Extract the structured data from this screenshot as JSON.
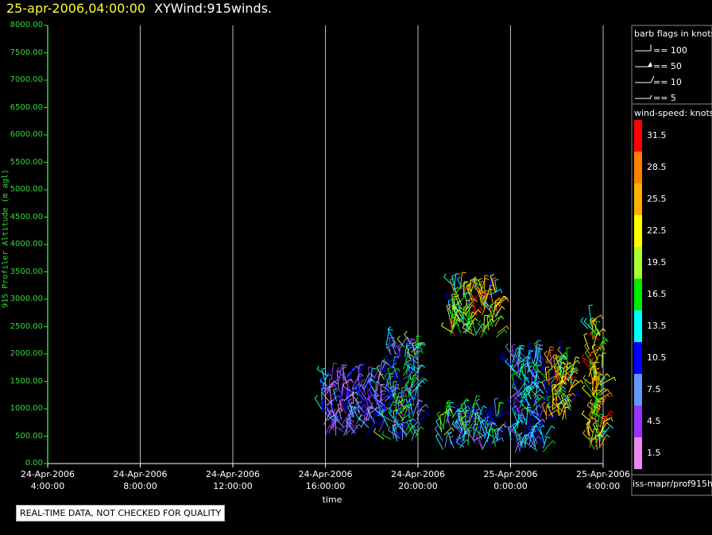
{
  "header": {
    "timestamp": "25-apr-2006,04:00:00",
    "product": "XYWind:915winds."
  },
  "barb_legend": {
    "title": "barb flags in knots",
    "items": [
      {
        "label": "== 100",
        "knots": 100
      },
      {
        "label": "== 50",
        "knots": 50
      },
      {
        "label": "== 10",
        "knots": 10
      },
      {
        "label": "== 5",
        "knots": 5
      }
    ]
  },
  "speed_legend": {
    "title": "wind-speed: knots",
    "entries": [
      {
        "label": "31.5",
        "color": "#ff0000"
      },
      {
        "label": "28.5",
        "color": "#ff8000"
      },
      {
        "label": "25.5",
        "color": "#ffb000"
      },
      {
        "label": "22.5",
        "color": "#ffff00"
      },
      {
        "label": "19.5",
        "color": "#aaff33"
      },
      {
        "label": "16.5",
        "color": "#00ee00"
      },
      {
        "label": "13.5",
        "color": "#00ffff"
      },
      {
        "label": "10.5",
        "color": "#0000ff"
      },
      {
        "label": "7.5",
        "color": "#6699ff"
      },
      {
        "label": "4.5",
        "color": "#9933ff"
      },
      {
        "label": "1.5",
        "color": "#ee88ee"
      }
    ]
  },
  "source": "iss-mapr/prof915h",
  "quality_note": "REAL-TIME DATA, NOT CHECKED FOR QUALITY",
  "chart_data": {
    "type": "scatter",
    "title": "XYWind:915winds.",
    "xlabel": "time",
    "ylabel": "915 Profiler Altitude (m agl)",
    "ylim": [
      0,
      8000
    ],
    "xlim": [
      "24-Apr-2006 04:00:00",
      "25-Apr-2006 04:00:00"
    ],
    "grid": "vertical",
    "x_ticks": [
      {
        "date": "24-Apr-2006",
        "time": "4:00:00"
      },
      {
        "date": "24-Apr-2006",
        "time": "8:00:00"
      },
      {
        "date": "24-Apr-2006",
        "time": "12:00:00"
      },
      {
        "date": "24-Apr-2006",
        "time": "16:00:00"
      },
      {
        "date": "24-Apr-2006",
        "time": "20:00:00"
      },
      {
        "date": "25-Apr-2006",
        "time": "0:00:00"
      },
      {
        "date": "25-Apr-2006",
        "time": "4:00:00"
      }
    ],
    "y_ticks": [
      "0.00",
      "500.00",
      "1000.00",
      "1500.00",
      "2000.00",
      "2500.00",
      "3000.00",
      "3500.00",
      "4000.00",
      "4500.00",
      "5000.00",
      "5500.00",
      "6000.00",
      "6500.00",
      "7000.00",
      "7500.00",
      "8000.00"
    ],
    "wind_clusters": [
      {
        "time_start": "24-Apr-2006 15:50",
        "time_end": "24-Apr-2006 18:30",
        "alt_min": 500,
        "alt_max": 1600,
        "speed_knots": [
          1.5,
          13.5
        ]
      },
      {
        "time_start": "24-Apr-2006 18:30",
        "time_end": "24-Apr-2006 20:00",
        "alt_min": 400,
        "alt_max": 2200,
        "speed_knots": [
          4.5,
          19.5
        ]
      },
      {
        "time_start": "24-Apr-2006 21:00",
        "time_end": "24-Apr-2006 23:30",
        "alt_min": 250,
        "alt_max": 950,
        "speed_knots": [
          4.5,
          19.5
        ]
      },
      {
        "time_start": "24-Apr-2006 21:20",
        "time_end": "24-Apr-2006 23:30",
        "alt_min": 2300,
        "alt_max": 3250,
        "speed_knots": [
          10.5,
          31.5
        ]
      },
      {
        "time_start": "25-Apr-2006 00:00",
        "time_end": "25-Apr-2006 01:30",
        "alt_min": 200,
        "alt_max": 2000,
        "speed_knots": [
          4.5,
          16.5
        ]
      },
      {
        "time_start": "25-Apr-2006 01:30",
        "time_end": "25-Apr-2006 02:40",
        "alt_min": 800,
        "alt_max": 1900,
        "speed_knots": [
          10.5,
          31.5
        ]
      },
      {
        "time_start": "25-Apr-2006 03:20",
        "time_end": "25-Apr-2006 04:00",
        "alt_min": 250,
        "alt_max": 2600,
        "speed_knots": [
          13.5,
          31.5
        ]
      }
    ]
  }
}
